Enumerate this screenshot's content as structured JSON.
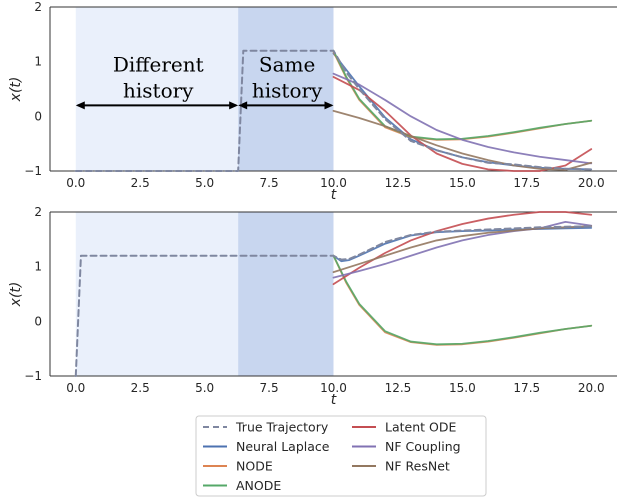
{
  "chart_data": [
    {
      "type": "line",
      "panel": "top",
      "xlabel": "t",
      "ylabel": "x(t)",
      "xlim": [
        -1.0,
        21.0
      ],
      "ylim": [
        -1,
        2
      ],
      "xticks": [
        "0.0",
        "2.5",
        "5.0",
        "7.5",
        "10.0",
        "12.5",
        "15.0",
        "17.5",
        "20.0"
      ],
      "yticks": [
        "2",
        "1",
        "0",
        "−1"
      ],
      "shaded_regions": [
        {
          "x": [
            0.0,
            6.3
          ],
          "color": "#eaf0fb"
        },
        {
          "x": [
            6.3,
            10.0
          ],
          "color": "#c8d6ef"
        }
      ],
      "annotations": [
        {
          "lines": [
            "Different",
            "history"
          ],
          "x": 3.2,
          "y": [
            0.95,
            0.47
          ]
        },
        {
          "lines": [
            "Same",
            "history"
          ],
          "x": 8.2,
          "y": [
            0.95,
            0.47
          ]
        }
      ],
      "arrows": [
        {
          "x": [
            0.0,
            6.3
          ],
          "y": 0.2
        },
        {
          "x": [
            6.3,
            10.0
          ],
          "y": 0.2
        }
      ],
      "series": [
        {
          "name": "True Trajectory",
          "dashed": true,
          "x": [
            0.0,
            6.3,
            6.3,
            6.5,
            10.0,
            10.0,
            10.5,
            11.0,
            12.0,
            13.0,
            14.0,
            15.0,
            16.0,
            17.0,
            18.0,
            19.0,
            20.0
          ],
          "y": [
            -1.0,
            -1.0,
            -1.0,
            1.2,
            1.2,
            1.2,
            0.8,
            0.5,
            -0.05,
            -0.45,
            -0.62,
            -0.75,
            -0.85,
            -0.88,
            -0.93,
            -0.96,
            -0.97
          ]
        },
        {
          "name": "Neural Laplace",
          "x": [
            10.0,
            10.5,
            11.0,
            12.0,
            13.0,
            14.0,
            15.0,
            16.0,
            17.0,
            18.0,
            19.0,
            20.0
          ],
          "y": [
            1.15,
            0.85,
            0.55,
            -0.02,
            -0.42,
            -0.62,
            -0.75,
            -0.84,
            -0.9,
            -0.94,
            -0.96,
            -0.97
          ]
        },
        {
          "name": "NODE",
          "x": [
            10.0,
            10.5,
            11.0,
            12.0,
            13.0,
            14.0,
            15.0,
            16.0,
            17.0,
            18.0,
            19.0,
            20.0
          ],
          "y": [
            1.18,
            0.7,
            0.3,
            -0.2,
            -0.38,
            -0.43,
            -0.42,
            -0.37,
            -0.3,
            -0.22,
            -0.14,
            -0.08
          ]
        },
        {
          "name": "ANODE",
          "x": [
            10.0,
            10.5,
            11.0,
            12.0,
            13.0,
            14.0,
            15.0,
            16.0,
            17.0,
            18.0,
            19.0,
            20.0
          ],
          "y": [
            1.2,
            0.72,
            0.32,
            -0.18,
            -0.37,
            -0.42,
            -0.41,
            -0.36,
            -0.29,
            -0.21,
            -0.14,
            -0.08
          ]
        },
        {
          "name": "Latent ODE",
          "x": [
            10.0,
            11.0,
            12.0,
            13.0,
            14.0,
            15.0,
            16.0,
            17.0,
            18.0,
            19.0,
            20.0
          ],
          "y": [
            0.72,
            0.48,
            0.1,
            -0.35,
            -0.68,
            -0.87,
            -0.97,
            -1.0,
            -1.0,
            -0.9,
            -0.6
          ]
        },
        {
          "name": "NF Coupling",
          "x": [
            10.0,
            11.0,
            12.0,
            13.0,
            14.0,
            15.0,
            16.0,
            17.0,
            18.0,
            19.0,
            20.0
          ],
          "y": [
            0.78,
            0.58,
            0.3,
            0.0,
            -0.25,
            -0.43,
            -0.56,
            -0.66,
            -0.74,
            -0.8,
            -0.86
          ]
        },
        {
          "name": "NF ResNet",
          "x": [
            10.0,
            11.0,
            12.0,
            13.0,
            14.0,
            15.0,
            16.0,
            17.0,
            18.0,
            19.0,
            20.0
          ],
          "y": [
            0.1,
            -0.03,
            -0.18,
            -0.36,
            -0.53,
            -0.68,
            -0.8,
            -0.9,
            -0.96,
            -0.98,
            -0.85
          ]
        }
      ]
    },
    {
      "type": "line",
      "panel": "bottom",
      "xlabel": "t",
      "ylabel": "x(t)",
      "xlim": [
        -1.0,
        21.0
      ],
      "ylim": [
        -1,
        2
      ],
      "xticks": [
        "0.0",
        "2.5",
        "5.0",
        "7.5",
        "10.0",
        "12.5",
        "15.0",
        "17.5",
        "20.0"
      ],
      "yticks": [
        "2",
        "1",
        "0",
        "−1"
      ],
      "shaded_regions": [
        {
          "x": [
            0.0,
            6.3
          ],
          "color": "#eaf0fb"
        },
        {
          "x": [
            6.3,
            10.0
          ],
          "color": "#c8d6ef"
        }
      ],
      "series": [
        {
          "name": "True Trajectory",
          "dashed": true,
          "x": [
            0.0,
            0.0,
            0.2,
            10.0,
            10.0,
            10.3,
            10.6,
            11.0,
            12.0,
            13.0,
            14.0,
            15.0,
            16.0,
            17.0,
            18.0,
            19.0,
            20.0
          ],
          "y": [
            -1.0,
            -1.0,
            1.2,
            1.2,
            1.2,
            1.13,
            1.14,
            1.22,
            1.45,
            1.58,
            1.64,
            1.66,
            1.68,
            1.7,
            1.72,
            1.73,
            1.74
          ]
        },
        {
          "name": "Neural Laplace",
          "x": [
            10.0,
            10.3,
            10.6,
            11.0,
            12.0,
            13.0,
            14.0,
            15.0,
            16.0,
            17.0,
            18.0,
            19.0,
            20.0
          ],
          "y": [
            1.2,
            1.1,
            1.12,
            1.2,
            1.42,
            1.57,
            1.63,
            1.65,
            1.66,
            1.68,
            1.69,
            1.7,
            1.71
          ]
        },
        {
          "name": "NODE",
          "x": [
            10.0,
            10.5,
            11.0,
            12.0,
            13.0,
            14.0,
            15.0,
            16.0,
            17.0,
            18.0,
            19.0,
            20.0
          ],
          "y": [
            1.2,
            0.7,
            0.3,
            -0.2,
            -0.38,
            -0.43,
            -0.42,
            -0.37,
            -0.3,
            -0.22,
            -0.14,
            -0.08
          ]
        },
        {
          "name": "ANODE",
          "x": [
            10.0,
            10.5,
            11.0,
            12.0,
            13.0,
            14.0,
            15.0,
            16.0,
            17.0,
            18.0,
            19.0,
            20.0
          ],
          "y": [
            1.2,
            0.72,
            0.32,
            -0.18,
            -0.37,
            -0.42,
            -0.41,
            -0.36,
            -0.29,
            -0.21,
            -0.14,
            -0.08
          ]
        },
        {
          "name": "Latent ODE",
          "x": [
            10.0,
            11.0,
            12.0,
            13.0,
            14.0,
            15.0,
            16.0,
            17.0,
            18.0,
            19.0,
            20.0
          ],
          "y": [
            0.68,
            0.98,
            1.25,
            1.48,
            1.65,
            1.78,
            1.88,
            1.95,
            2.0,
            2.0,
            1.95
          ]
        },
        {
          "name": "NF Coupling",
          "x": [
            10.0,
            11.0,
            12.0,
            13.0,
            14.0,
            15.0,
            16.0,
            17.0,
            18.0,
            19.0,
            20.0
          ],
          "y": [
            0.8,
            0.92,
            1.05,
            1.2,
            1.35,
            1.48,
            1.58,
            1.65,
            1.7,
            1.82,
            1.75
          ]
        },
        {
          "name": "NF ResNet",
          "x": [
            10.0,
            11.0,
            12.0,
            13.0,
            14.0,
            15.0,
            16.0,
            17.0,
            18.0,
            19.0,
            20.0
          ],
          "y": [
            0.9,
            1.05,
            1.2,
            1.35,
            1.48,
            1.56,
            1.62,
            1.66,
            1.7,
            1.72,
            1.74
          ]
        }
      ]
    }
  ],
  "legend": {
    "placement": "bottom-center",
    "columns": [
      [
        "True Trajectory",
        "Neural Laplace",
        "NODE",
        "ANODE"
      ],
      [
        "Latent ODE",
        "NF Coupling",
        "NF ResNet"
      ]
    ]
  },
  "colors": {
    "True Trajectory": "#7f87a0",
    "Neural Laplace": "#4c72b0",
    "NODE": "#dd8452",
    "ANODE": "#55a868",
    "Latent ODE": "#c44e52",
    "NF Coupling": "#8172b3",
    "NF ResNet": "#937860"
  }
}
